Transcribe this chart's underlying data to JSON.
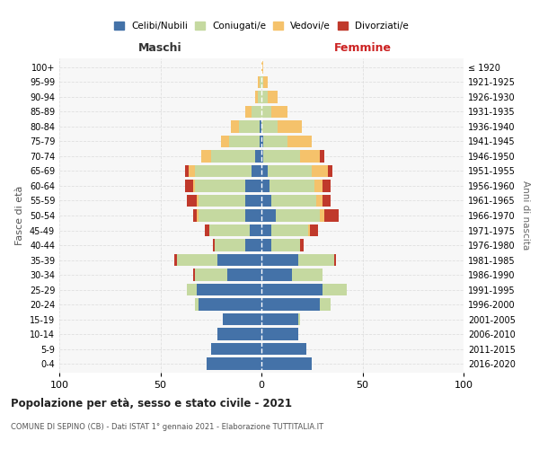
{
  "age_groups": [
    "0-4",
    "5-9",
    "10-14",
    "15-19",
    "20-24",
    "25-29",
    "30-34",
    "35-39",
    "40-44",
    "45-49",
    "50-54",
    "55-59",
    "60-64",
    "65-69",
    "70-74",
    "75-79",
    "80-84",
    "85-89",
    "90-94",
    "95-99",
    "100+"
  ],
  "birth_years": [
    "2016-2020",
    "2011-2015",
    "2006-2010",
    "2001-2005",
    "1996-2000",
    "1991-1995",
    "1986-1990",
    "1981-1985",
    "1976-1980",
    "1971-1975",
    "1966-1970",
    "1961-1965",
    "1956-1960",
    "1951-1955",
    "1946-1950",
    "1941-1945",
    "1936-1940",
    "1931-1935",
    "1926-1930",
    "1921-1925",
    "≤ 1920"
  ],
  "maschi": {
    "celibi": [
      27,
      25,
      22,
      19,
      31,
      32,
      17,
      22,
      8,
      6,
      8,
      8,
      8,
      5,
      3,
      1,
      1,
      0,
      0,
      0,
      0
    ],
    "coniugati": [
      0,
      0,
      0,
      0,
      2,
      5,
      16,
      20,
      15,
      20,
      23,
      23,
      25,
      28,
      22,
      15,
      10,
      5,
      2,
      1,
      0
    ],
    "vedovi": [
      0,
      0,
      0,
      0,
      0,
      0,
      0,
      0,
      0,
      0,
      1,
      1,
      1,
      3,
      5,
      4,
      4,
      3,
      1,
      1,
      0
    ],
    "divorziati": [
      0,
      0,
      0,
      0,
      0,
      0,
      1,
      1,
      1,
      2,
      2,
      5,
      4,
      2,
      0,
      0,
      0,
      0,
      0,
      0,
      0
    ]
  },
  "femmine": {
    "nubili": [
      25,
      22,
      18,
      18,
      29,
      30,
      15,
      18,
      5,
      5,
      7,
      5,
      4,
      3,
      1,
      1,
      0,
      0,
      0,
      0,
      0
    ],
    "coniugate": [
      0,
      0,
      0,
      1,
      5,
      12,
      15,
      18,
      14,
      18,
      22,
      22,
      22,
      22,
      18,
      12,
      8,
      5,
      3,
      1,
      0
    ],
    "vedove": [
      0,
      0,
      0,
      0,
      0,
      0,
      0,
      0,
      0,
      1,
      2,
      3,
      4,
      8,
      10,
      12,
      12,
      8,
      5,
      2,
      1
    ],
    "divorziate": [
      0,
      0,
      0,
      0,
      0,
      0,
      0,
      1,
      2,
      4,
      7,
      4,
      4,
      2,
      2,
      0,
      0,
      0,
      0,
      0,
      0
    ]
  },
  "colors": {
    "celibi": "#4472a8",
    "coniugati": "#c5d9a0",
    "vedovi": "#f5c26b",
    "divorziati": "#c0392b"
  },
  "title": "Popolazione per età, sesso e stato civile - 2021",
  "subtitle": "COMUNE DI SEPINO (CB) - Dati ISTAT 1° gennaio 2021 - Elaborazione TUTTITALIA.IT",
  "xlabel_left": "Maschi",
  "xlabel_right": "Femmine",
  "ylabel_left": "Fasce di età",
  "ylabel_right": "Anni di nascita",
  "legend_labels": [
    "Celibi/Nubili",
    "Coniugati/e",
    "Vedovi/e",
    "Divorziati/e"
  ],
  "xlim": 100,
  "background_color": "#ffffff",
  "grid_color": "#cccccc"
}
